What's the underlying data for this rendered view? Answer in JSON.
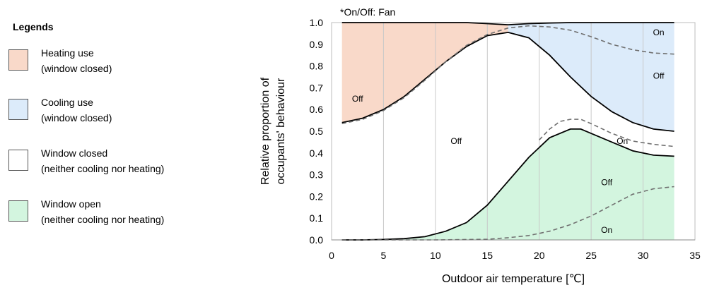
{
  "legend": {
    "title": "Legends",
    "items": [
      {
        "line1": "Heating use",
        "line2": "(window closed)",
        "color": "#f9d9c9"
      },
      {
        "line1": "Cooling use",
        "line2": "(window closed)",
        "color": "#dcebfa"
      },
      {
        "line1": "Window closed",
        "line2": "(neither cooling nor heating)",
        "color": "#ffffff"
      },
      {
        "line1": "Window open",
        "line2": "(neither cooling nor heating)",
        "color": "#d3f5df"
      }
    ]
  },
  "chart_data": {
    "type": "line",
    "note": "*On/Off: Fan",
    "xlabel": "Outdoor air temperature [℃]",
    "ylabel_lines": [
      "Relative proportion of",
      "occupants' behaviour"
    ],
    "xlim": [
      0,
      35
    ],
    "ylim": [
      0,
      1.0
    ],
    "xticks": [
      0,
      5,
      10,
      15,
      20,
      25,
      30,
      35
    ],
    "yticks": [
      0.0,
      0.1,
      0.2,
      0.3,
      0.4,
      0.5,
      0.6,
      0.7,
      0.8,
      0.9,
      1.0
    ],
    "grid": "vertical",
    "region_colors": {
      "heating": "#f9d9c9",
      "cooling": "#dcebfa",
      "window_open": "#d3f5df"
    },
    "series": [
      {
        "style": "solid",
        "x": [
          1,
          3,
          5,
          7,
          9,
          11,
          13,
          15,
          17,
          19,
          21,
          23,
          25,
          27,
          29,
          31,
          33
        ],
        "y": [
          0.54,
          0.56,
          0.6,
          0.66,
          0.74,
          0.82,
          0.89,
          0.94,
          0.955,
          0.93,
          0.85,
          0.75,
          0.66,
          0.59,
          0.54,
          0.51,
          0.5
        ]
      },
      {
        "style": "dashed",
        "x": [
          1,
          3,
          5,
          7,
          9,
          11,
          13,
          15,
          17,
          19,
          21,
          23,
          25,
          27,
          29,
          31,
          33
        ],
        "y": [
          0.535,
          0.555,
          0.595,
          0.655,
          0.735,
          0.82,
          0.895,
          0.945,
          0.975,
          0.985,
          0.98,
          0.965,
          0.935,
          0.9,
          0.875,
          0.86,
          0.855
        ]
      },
      {
        "style": "solid",
        "x": [
          1,
          3,
          5,
          7,
          9,
          11,
          13,
          15,
          17,
          19,
          21,
          23,
          24,
          25,
          27,
          29,
          31,
          33
        ],
        "y": [
          1.0,
          1.0,
          1.0,
          1.0,
          1.0,
          1.0,
          1.0,
          0.995,
          0.99,
          0.995,
          0.998,
          1.0,
          1.0,
          1.0,
          1.0,
          1.0,
          1.0,
          1.0
        ]
      },
      {
        "style": "solid",
        "x": [
          1,
          3,
          5,
          7,
          9,
          11,
          13,
          15,
          17,
          19,
          21,
          23,
          24,
          25,
          27,
          29,
          31,
          33
        ],
        "y": [
          0.0,
          0.0,
          0.002,
          0.006,
          0.015,
          0.04,
          0.08,
          0.16,
          0.27,
          0.38,
          0.47,
          0.51,
          0.51,
          0.49,
          0.45,
          0.41,
          0.39,
          0.385
        ]
      },
      {
        "style": "dashed",
        "x": [
          20,
          21,
          22,
          23,
          24,
          25,
          27,
          29,
          31,
          33
        ],
        "y": [
          0.46,
          0.51,
          0.545,
          0.555,
          0.555,
          0.535,
          0.49,
          0.455,
          0.44,
          0.43
        ]
      },
      {
        "style": "dashed",
        "x": [
          1,
          5,
          10,
          15,
          17,
          19,
          21,
          23,
          25,
          27,
          29,
          31,
          33
        ],
        "y": [
          0.0,
          0.0,
          0.0,
          0.003,
          0.01,
          0.02,
          0.04,
          0.07,
          0.11,
          0.16,
          0.21,
          0.235,
          0.245
        ]
      }
    ],
    "annotations": [
      {
        "text": "On",
        "x": 31.5,
        "y": 0.955
      },
      {
        "text": "Off",
        "x": 31.5,
        "y": 0.755
      },
      {
        "text": "Off",
        "x": 2.5,
        "y": 0.65
      },
      {
        "text": "Off",
        "x": 12.0,
        "y": 0.455
      },
      {
        "text": "On",
        "x": 28.0,
        "y": 0.455
      },
      {
        "text": "Off",
        "x": 26.5,
        "y": 0.265
      },
      {
        "text": "On",
        "x": 26.5,
        "y": 0.045
      }
    ]
  }
}
